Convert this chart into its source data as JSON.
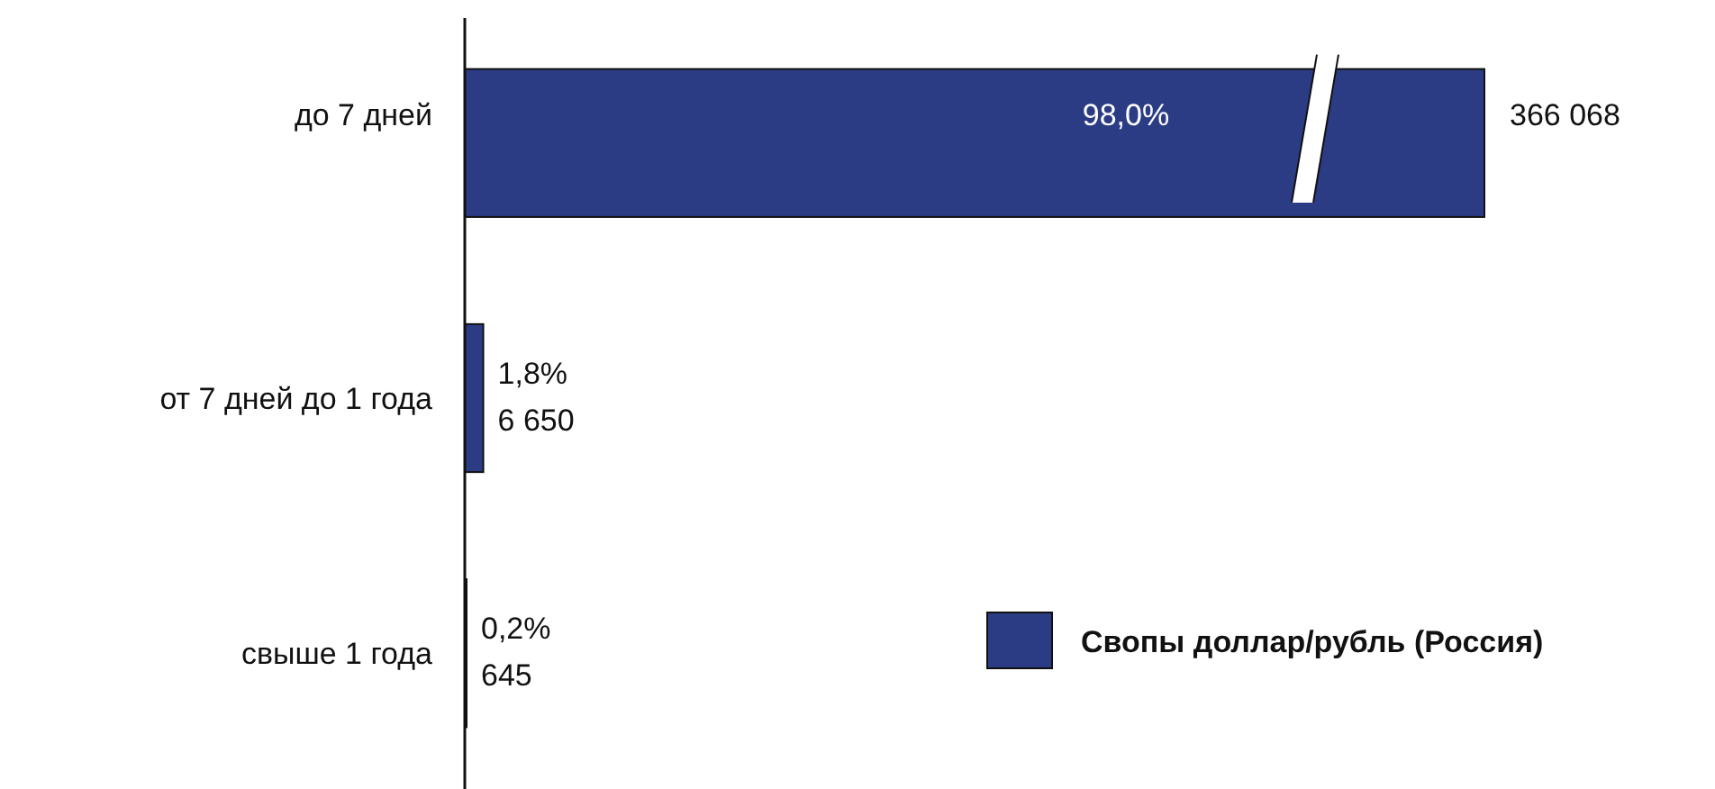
{
  "chart_data": {
    "type": "bar",
    "orientation": "horizontal",
    "categories": [
      "до 7 дней",
      "от 7 дней до 1 года",
      "свыше 1 года"
    ],
    "series": [
      {
        "name": "Свопы доллар/рубль (Россия)",
        "color": "#2b3c84",
        "values": [
          366068,
          6650,
          645
        ],
        "value_labels": [
          "366 068",
          "6 650",
          "645"
        ]
      }
    ],
    "annotations": [
      "98,0%",
      "1,8%",
      "0,2%"
    ],
    "legend": "bottom right"
  }
}
